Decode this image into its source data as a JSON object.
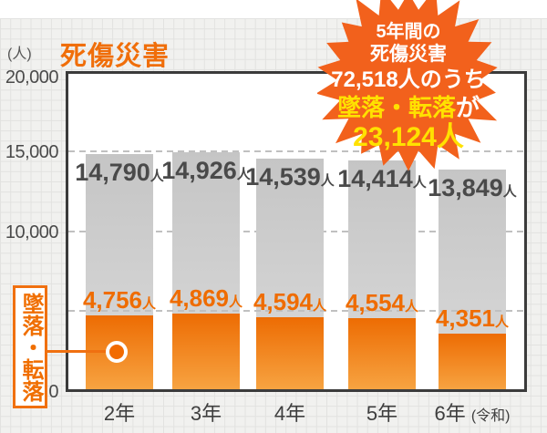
{
  "chart_data": {
    "type": "bar",
    "title": "死傷災害",
    "unit_label": "(人)",
    "categories": [
      "2年",
      "3年",
      "4年",
      "5年",
      "6年"
    ],
    "era_suffix": "(令和)",
    "series": [
      {
        "name": "死傷災害",
        "values": [
          14790,
          14926,
          14539,
          14414,
          13849
        ],
        "labels": [
          "14,790",
          "14,926",
          "14,539",
          "14,414",
          "13,849"
        ],
        "label_suffix": "人",
        "color": "#cccccc"
      },
      {
        "name": "墜落・転落",
        "values": [
          4756,
          4869,
          4594,
          4554,
          4351
        ],
        "labels": [
          "4,756",
          "4,869",
          "4,594",
          "4,554",
          "4,351"
        ],
        "label_suffix": "人",
        "color": "#ee7800"
      }
    ],
    "ylim": [
      0,
      20000
    ],
    "yticks": [
      {
        "value": 20000,
        "label": "20,000"
      },
      {
        "value": 15000,
        "label": "15,000"
      },
      {
        "value": 10000,
        "label": "10,000"
      },
      {
        "value": 0,
        "label": "0"
      }
    ],
    "gridline_values": [
      15000,
      10000,
      5000
    ],
    "grid": true,
    "legend_position": "none"
  },
  "callout": {
    "label": "墜落・転落"
  },
  "badge": {
    "line1": "5年間の",
    "line2": "死傷災害",
    "line3": "72,518人のうち",
    "line4_highlight": "墜落・転落",
    "line4_tail": "が",
    "line5": "23,124人"
  },
  "colors": {
    "accent_orange": "#f06e0a",
    "burst_orange": "#f2611c",
    "highlight_yellow": "#ffe100",
    "bar_gray": "#cfcfcf",
    "axis_dark": "#3b3b3b"
  }
}
